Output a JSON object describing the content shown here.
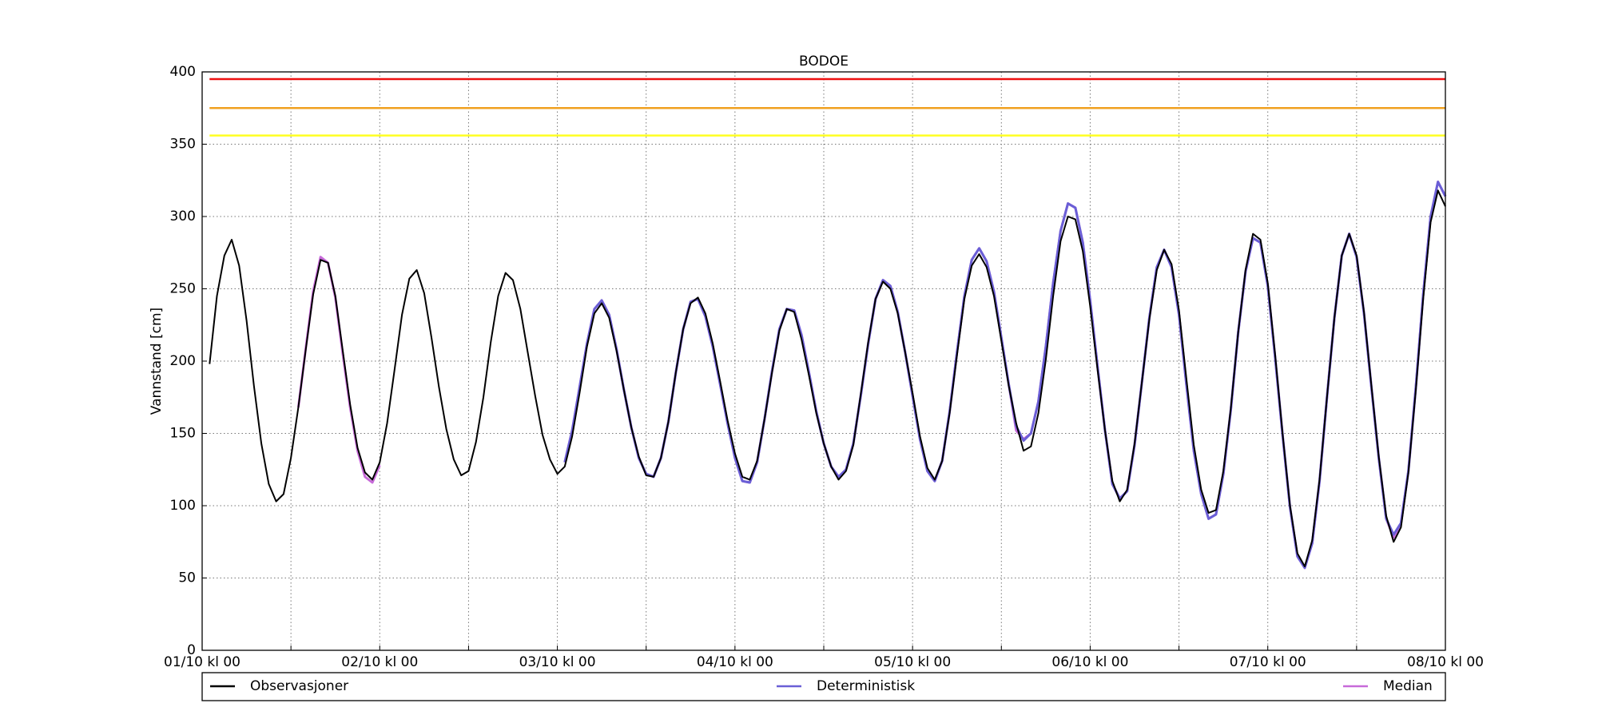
{
  "chart_data": {
    "type": "line",
    "title": "BODOE",
    "ylabel": "Vannstand [cm]",
    "x": [
      1,
      2,
      3,
      4,
      5,
      6,
      7,
      8,
      9,
      10,
      11,
      12,
      13,
      14,
      15,
      16,
      17,
      18,
      19,
      20,
      21,
      22,
      23,
      24,
      25,
      26,
      27,
      28,
      29,
      30,
      31,
      32,
      33,
      34,
      35,
      36,
      37,
      38,
      39,
      40,
      41,
      42,
      43,
      44,
      45,
      46,
      47,
      48,
      49,
      50,
      51,
      52,
      53,
      54,
      55,
      56,
      57,
      58,
      59,
      60,
      61,
      62,
      63,
      64,
      65,
      66,
      67,
      68,
      69,
      70,
      71,
      72,
      73,
      74,
      75,
      76,
      77,
      78,
      79,
      80,
      81,
      82,
      83,
      84,
      85,
      86,
      87,
      88,
      89,
      90,
      91,
      92,
      93,
      94,
      95,
      96,
      97,
      98,
      99,
      100,
      101,
      102,
      103,
      104,
      105,
      106,
      107,
      108,
      109,
      110,
      111,
      112,
      113,
      114,
      115,
      116,
      117,
      118,
      119,
      120,
      121,
      122,
      123,
      124,
      125,
      126,
      127,
      128,
      129,
      130,
      131,
      132,
      133,
      134,
      135,
      136,
      137,
      138,
      139,
      140,
      141,
      142,
      143,
      144,
      145,
      146,
      147,
      148,
      149,
      150,
      151,
      152,
      153,
      154,
      155,
      156,
      157,
      158,
      159,
      160,
      161,
      162,
      163,
      164,
      165,
      166,
      167,
      168
    ],
    "series": [
      {
        "name": "Observasjoner",
        "color": "#000000",
        "values": [
          198,
          245,
          273,
          284,
          266,
          228,
          183,
          143,
          115,
          103,
          108,
          133,
          168,
          208,
          246,
          270,
          268,
          245,
          207,
          170,
          140,
          123,
          118,
          130,
          157,
          194,
          232,
          257,
          263,
          247,
          216,
          182,
          153,
          132,
          121,
          124,
          144,
          175,
          213,
          245,
          261,
          256,
          236,
          206,
          176,
          149,
          132,
          122,
          127,
          148,
          178,
          210,
          233,
          240,
          230,
          207,
          180,
          154,
          134,
          121,
          120,
          133,
          158,
          192,
          222,
          240,
          244,
          233,
          212,
          186,
          159,
          136,
          120,
          118,
          131,
          160,
          192,
          221,
          236,
          234,
          215,
          190,
          164,
          143,
          127,
          118,
          124,
          142,
          177,
          213,
          243,
          255,
          250,
          233,
          206,
          178,
          148,
          126,
          118,
          131,
          164,
          204,
          243,
          266,
          274,
          265,
          245,
          214,
          183,
          157,
          138,
          141,
          164,
          201,
          245,
          283,
          300,
          298,
          276,
          238,
          194,
          152,
          117,
          103,
          111,
          143,
          186,
          229,
          263,
          277,
          267,
          235,
          188,
          142,
          111,
          95,
          97,
          124,
          167,
          220,
          263,
          288,
          284,
          254,
          204,
          150,
          100,
          67,
          58,
          76,
          118,
          175,
          230,
          273,
          288,
          273,
          234,
          183,
          134,
          93,
          75,
          85,
          123,
          180,
          243,
          296,
          318,
          307
        ]
      },
      {
        "name": "Deterministisk",
        "color": "#6a5fd6",
        "values": [
          null,
          null,
          null,
          null,
          null,
          null,
          null,
          null,
          null,
          null,
          null,
          null,
          null,
          null,
          null,
          null,
          null,
          null,
          null,
          null,
          null,
          null,
          null,
          null,
          null,
          null,
          null,
          null,
          null,
          null,
          null,
          null,
          null,
          null,
          null,
          null,
          null,
          null,
          null,
          null,
          null,
          null,
          null,
          null,
          null,
          null,
          null,
          null,
          130,
          152,
          182,
          212,
          236,
          242,
          232,
          208,
          180,
          154,
          133,
          122,
          120,
          133,
          158,
          192,
          222,
          241,
          243,
          231,
          210,
          184,
          157,
          133,
          117,
          116,
          130,
          160,
          193,
          222,
          236,
          235,
          218,
          192,
          165,
          143,
          127,
          120,
          125,
          143,
          176,
          212,
          243,
          256,
          252,
          234,
          206,
          176,
          146,
          124,
          117,
          131,
          165,
          206,
          245,
          270,
          278,
          269,
          248,
          216,
          184,
          155,
          145,
          150,
          172,
          210,
          254,
          290,
          309,
          306,
          282,
          242,
          196,
          152,
          115,
          105,
          110,
          142,
          186,
          230,
          265,
          277,
          265,
          232,
          184,
          138,
          108,
          91,
          94,
          122,
          166,
          220,
          262,
          285,
          282,
          252,
          202,
          149,
          99,
          65,
          57,
          74,
          117,
          175,
          230,
          273,
          288,
          272,
          233,
          182,
          133,
          91,
          80,
          88,
          124,
          182,
          246,
          300,
          324,
          314
        ]
      },
      {
        "name": "Median",
        "color": "#c76ad9",
        "values": [
          null,
          null,
          null,
          null,
          null,
          null,
          null,
          null,
          null,
          null,
          null,
          null,
          168,
          209,
          248,
          272,
          268,
          244,
          205,
          168,
          138,
          120,
          116,
          128,
          null,
          null,
          null,
          null,
          null,
          null,
          null,
          null,
          null,
          null,
          null,
          null,
          null,
          null,
          null,
          null,
          null,
          null,
          null,
          null,
          null,
          null,
          null,
          null,
          130,
          152,
          182,
          212,
          236,
          242,
          232,
          208,
          180,
          154,
          133,
          122,
          120,
          133,
          158,
          192,
          222,
          241,
          243,
          231,
          210,
          184,
          157,
          133,
          117,
          116,
          130,
          160,
          193,
          222,
          236,
          235,
          218,
          192,
          165,
          143,
          127,
          120,
          125,
          143,
          176,
          212,
          243,
          256,
          252,
          234,
          206,
          176,
          146,
          124,
          117,
          131,
          165,
          206,
          245,
          270,
          278,
          269,
          248,
          216,
          184,
          152,
          146,
          150,
          172,
          210,
          254,
          290,
          309,
          306,
          282,
          242,
          196,
          152,
          115,
          105,
          110,
          142,
          186,
          230,
          265,
          277,
          265,
          232,
          184,
          138,
          108,
          91,
          94,
          122,
          166,
          220,
          262,
          285,
          282,
          252,
          202,
          149,
          99,
          65,
          57,
          74,
          117,
          175,
          230,
          273,
          288,
          272,
          233,
          182,
          133,
          91,
          78,
          88,
          124,
          182,
          246,
          300,
          324,
          314
        ]
      }
    ],
    "threshold_lines": [
      {
        "value": 395,
        "color": "#ee1111"
      },
      {
        "value": 375,
        "color": "#f0a020"
      },
      {
        "value": 356,
        "color": "#ffff22"
      }
    ],
    "xlim": [
      0,
      168
    ],
    "xticks": [
      {
        "value": 0,
        "label": "01/10 kl 00"
      },
      {
        "value": 24,
        "label": "02/10 kl 00"
      },
      {
        "value": 48,
        "label": "03/10 kl 00"
      },
      {
        "value": 72,
        "label": "04/10 kl 00"
      },
      {
        "value": 96,
        "label": "05/10 kl 00"
      },
      {
        "value": 120,
        "label": "06/10 kl 00"
      },
      {
        "value": 144,
        "label": "07/10 kl 00"
      },
      {
        "value": 168,
        "label": "08/10 kl 00"
      }
    ],
    "minor_xticks": [
      12,
      36,
      60,
      84,
      108,
      132,
      156
    ],
    "ylim": [
      0,
      400
    ],
    "yticks": [
      0,
      50,
      100,
      150,
      200,
      250,
      300,
      350,
      400
    ],
    "grid": true,
    "legend": "bottom"
  }
}
